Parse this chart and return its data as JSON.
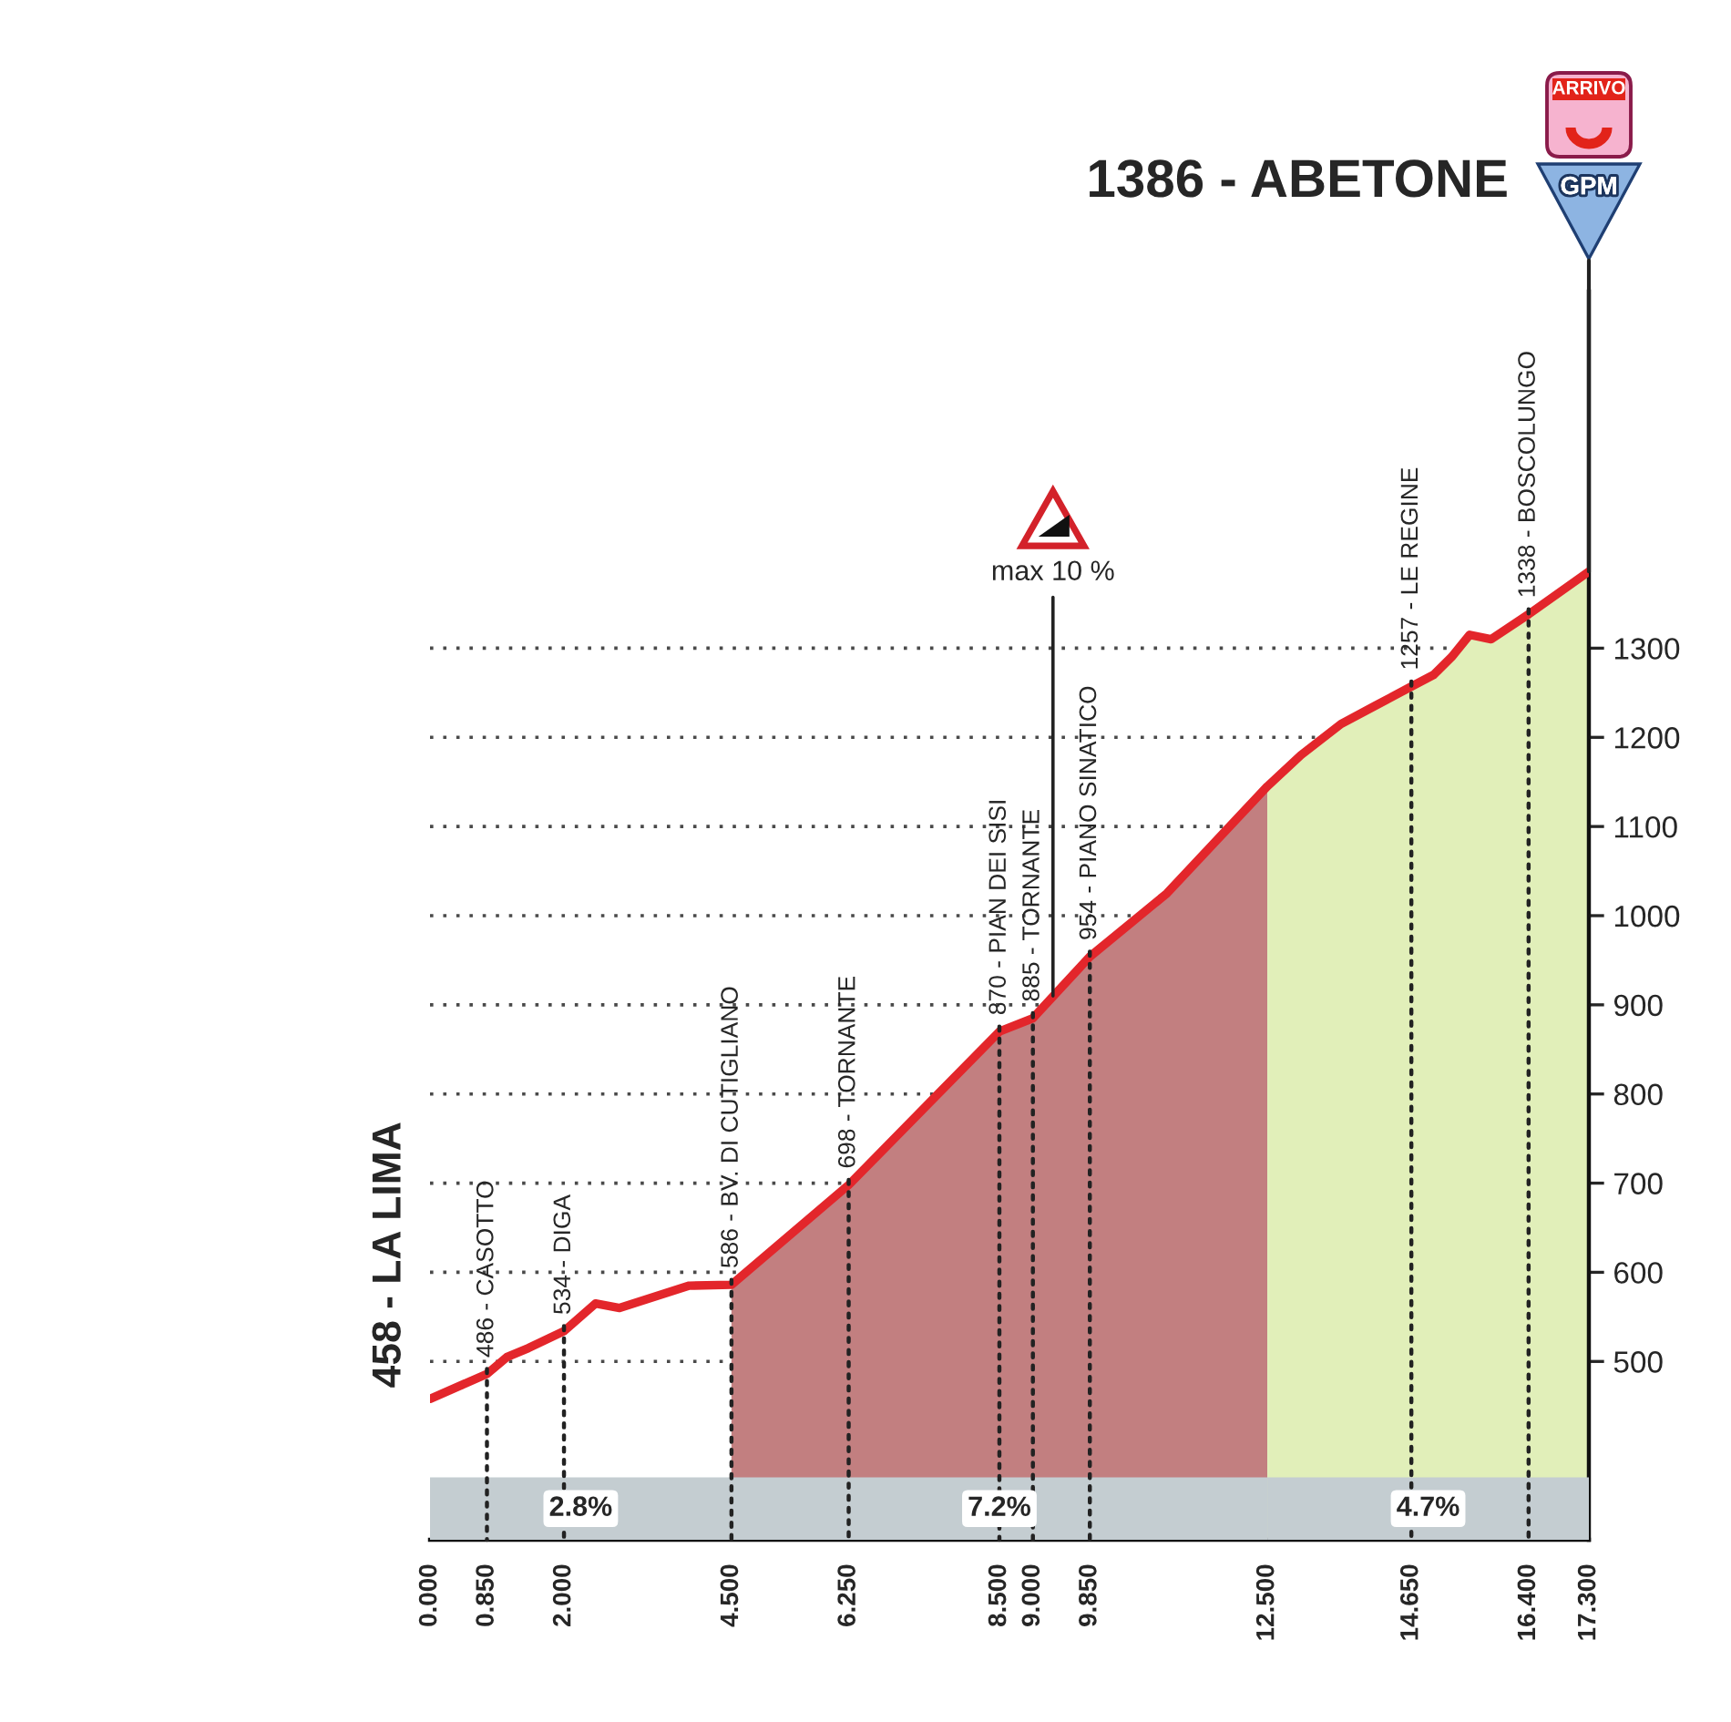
{
  "chart_data": {
    "type": "line",
    "title": "1386 - ABETONE",
    "x": [
      0,
      0.85,
      1.15,
      1.47,
      2.0,
      2.47,
      2.83,
      3.87,
      4.5,
      6.25,
      8.5,
      9.0,
      9.85,
      11.0,
      12.5,
      13.0,
      13.6,
      14.1,
      14.65,
      14.98,
      15.25,
      15.52,
      15.84,
      16.4,
      17.3
    ],
    "series": [
      {
        "type": "area",
        "color": "#c27f80",
        "x": [
          4.5,
          6.25,
          8.5,
          9.0,
          9.85,
          11.0,
          12.5
        ],
        "values": [
          586,
          698,
          870,
          885,
          954,
          1025,
          1145
        ]
      },
      {
        "type": "area",
        "color": "#e1efb9",
        "x": [
          12.5,
          13.0,
          13.6,
          14.1,
          14.65,
          14.98,
          15.25,
          15.52,
          15.84,
          16.4,
          17.3
        ],
        "values": [
          1145,
          1180,
          1215,
          1235,
          1257,
          1270,
          1290,
          1315,
          1310,
          1338,
          1386
        ]
      },
      {
        "color": "#e3262b",
        "values": [
          458,
          486,
          505,
          515,
          534,
          565,
          560,
          585,
          586,
          698,
          870,
          885,
          954,
          1025,
          1145,
          1180,
          1215,
          1235,
          1257,
          1270,
          1290,
          1315,
          1310,
          1338,
          1386
        ],
        "value_labels": [
          "458 - LA LIMA",
          "486 - CASOTTO",
          null,
          null,
          "534 - DIGA",
          null,
          null,
          null,
          "586 - BV. DI CUTIGLIANO",
          "698 - TORNANTE",
          "870 - PIAN DEI SISI",
          "885 - TORNANTE",
          "954 - PIANO SINATICO",
          null,
          null,
          null,
          null,
          null,
          "1257 - LE REGINE",
          null,
          null,
          null,
          null,
          "1338 - BOSCOLUNGO",
          null
        ]
      }
    ],
    "xlim": [
      0,
      17.3
    ],
    "xticks": [
      {
        "value": 0,
        "label": "0.000"
      },
      {
        "value": 0.85,
        "label": "0.850"
      },
      {
        "value": 2,
        "label": "2.000"
      },
      {
        "value": 4.5,
        "label": "4.500"
      },
      {
        "value": 6.25,
        "label": "6.250"
      },
      {
        "value": 8.5,
        "label": "8.500"
      },
      {
        "value": 9,
        "label": "9.000"
      },
      {
        "value": 9.85,
        "label": "9.850"
      },
      {
        "value": 12.5,
        "label": "12.500"
      },
      {
        "value": 14.65,
        "label": "14.650"
      },
      {
        "value": 16.4,
        "label": "16.400"
      },
      {
        "value": 17.3,
        "label": "17.300"
      }
    ],
    "ylim": [
      300,
      1700
    ],
    "yticks": [
      500,
      600,
      700,
      800,
      900,
      1000,
      1100,
      1200,
      1300
    ],
    "grid": "y",
    "bands": [
      {
        "axis": "x",
        "from": 0,
        "to": 4.5,
        "label": "2.8%",
        "color": "#c4cdd1"
      },
      {
        "axis": "x",
        "from": 4.5,
        "to": 12.5,
        "label": "7.2%",
        "color": "#c4cdd1"
      },
      {
        "axis": "x",
        "from": 12.5,
        "to": 17.3,
        "label": "4.7%",
        "color": "#c4cdd1"
      }
    ],
    "annotations": [
      {
        "text": "max 10 %",
        "x": 9.3,
        "y": 910
      },
      "ARRIVO",
      "GPM"
    ]
  }
}
